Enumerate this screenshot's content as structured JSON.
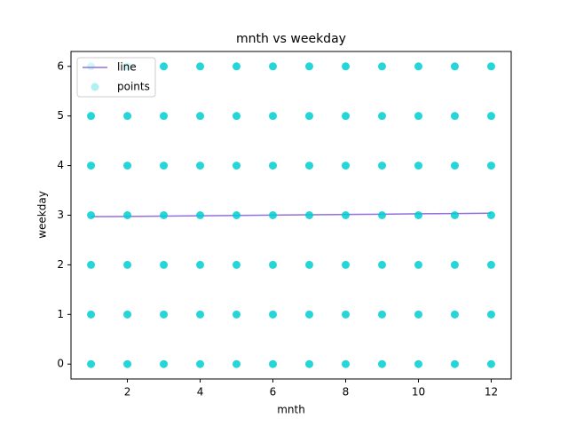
{
  "chart_data": {
    "type": "scatter",
    "title": "mnth vs weekday",
    "x_label": "mnth",
    "y_label": "weekday",
    "xlim": [
      0.45,
      12.55
    ],
    "ylim": [
      -0.3,
      6.3
    ],
    "xticks": [
      2,
      4,
      6,
      8,
      10,
      12
    ],
    "yticks": [
      0,
      1,
      2,
      3,
      4,
      5,
      6
    ],
    "legend": "upper left",
    "series": [
      {
        "name": "line",
        "kind": "line",
        "color": "#9370db",
        "x": [
          1,
          2,
          3,
          4,
          5,
          6,
          7,
          8,
          9,
          10,
          11,
          12
        ],
        "values": [
          2.97,
          2.976,
          2.983,
          2.989,
          2.996,
          3.002,
          3.009,
          3.015,
          3.021,
          3.028,
          3.034,
          3.04
        ]
      },
      {
        "name": "points",
        "kind": "points",
        "color": "#00ced1",
        "x": [
          1,
          2,
          3,
          4,
          5,
          6,
          7,
          8,
          9,
          10,
          11,
          12,
          1,
          2,
          3,
          4,
          5,
          6,
          7,
          8,
          9,
          10,
          11,
          12,
          1,
          2,
          3,
          4,
          5,
          6,
          7,
          8,
          9,
          10,
          11,
          12,
          1,
          2,
          3,
          4,
          5,
          6,
          7,
          8,
          9,
          10,
          11,
          12,
          1,
          2,
          3,
          4,
          5,
          6,
          7,
          8,
          9,
          10,
          11,
          12,
          1,
          2,
          3,
          4,
          5,
          6,
          7,
          8,
          9,
          10,
          11,
          12,
          1,
          2,
          3,
          4,
          5,
          6,
          7,
          8,
          9,
          10,
          11,
          12
        ],
        "values": [
          0,
          0,
          0,
          0,
          0,
          0,
          0,
          0,
          0,
          0,
          0,
          0,
          1,
          1,
          1,
          1,
          1,
          1,
          1,
          1,
          1,
          1,
          1,
          1,
          2,
          2,
          2,
          2,
          2,
          2,
          2,
          2,
          2,
          2,
          2,
          2,
          3,
          3,
          3,
          3,
          3,
          3,
          3,
          3,
          3,
          3,
          3,
          3,
          4,
          4,
          4,
          4,
          4,
          4,
          4,
          4,
          4,
          4,
          4,
          4,
          5,
          5,
          5,
          5,
          5,
          5,
          5,
          5,
          5,
          5,
          5,
          5,
          6,
          6,
          6,
          6,
          6,
          6,
          6,
          6,
          6,
          6,
          6,
          6
        ]
      }
    ]
  }
}
